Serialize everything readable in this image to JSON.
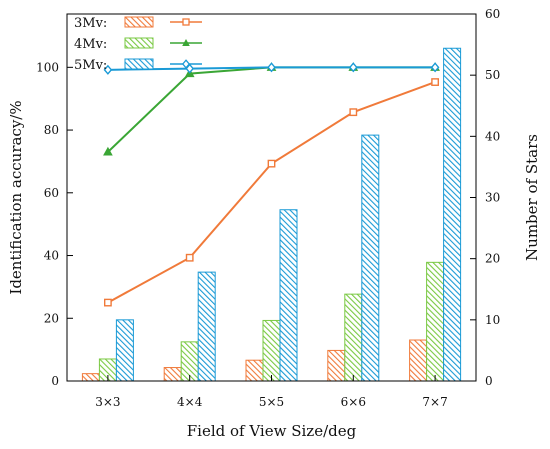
{
  "chart_data": {
    "type": "bar",
    "xlabel": "Field of View Size/deg",
    "ylabel_left": "Identification accuracy/%",
    "ylabel_right": "Number of Stars",
    "categories": [
      "3×3",
      "4×4",
      "5×5",
      "6×6",
      "7×7"
    ],
    "ylim_left": [
      0,
      117
    ],
    "ylim_right": [
      0,
      60
    ],
    "yticks_left": [
      0,
      20,
      40,
      60,
      80,
      100
    ],
    "yticks_right": [
      0,
      10,
      20,
      30,
      40,
      50,
      60
    ],
    "grid": false,
    "legend_position": "top-left",
    "bar_series": [
      {
        "name": "3Mv:",
        "axis": "right",
        "color": "#f07a3a",
        "values": [
          1.2,
          2.2,
          3.4,
          5.0,
          6.7
        ]
      },
      {
        "name": "4Mv:",
        "axis": "right",
        "color": "#7ac943",
        "values": [
          3.6,
          6.4,
          9.9,
          14.2,
          19.4
        ]
      },
      {
        "name": "5Mv:",
        "axis": "right",
        "color": "#1a9ad6",
        "values": [
          10.0,
          17.8,
          28.0,
          40.2,
          54.4
        ]
      }
    ],
    "line_series": [
      {
        "name": "3Mv:",
        "axis": "left",
        "color": "#f07a3a",
        "marker": "square",
        "values": [
          25.0,
          39.3,
          69.3,
          85.7,
          95.3
        ]
      },
      {
        "name": "4Mv:",
        "axis": "left",
        "color": "#3aa635",
        "marker": "triangle",
        "values": [
          73.0,
          98.0,
          100.0,
          100.0,
          100.0
        ]
      },
      {
        "name": "5Mv:",
        "axis": "left",
        "color": "#1a9ad6",
        "marker": "diamond",
        "values": [
          99.2,
          99.6,
          100.0,
          100.0,
          100.0
        ]
      }
    ]
  }
}
